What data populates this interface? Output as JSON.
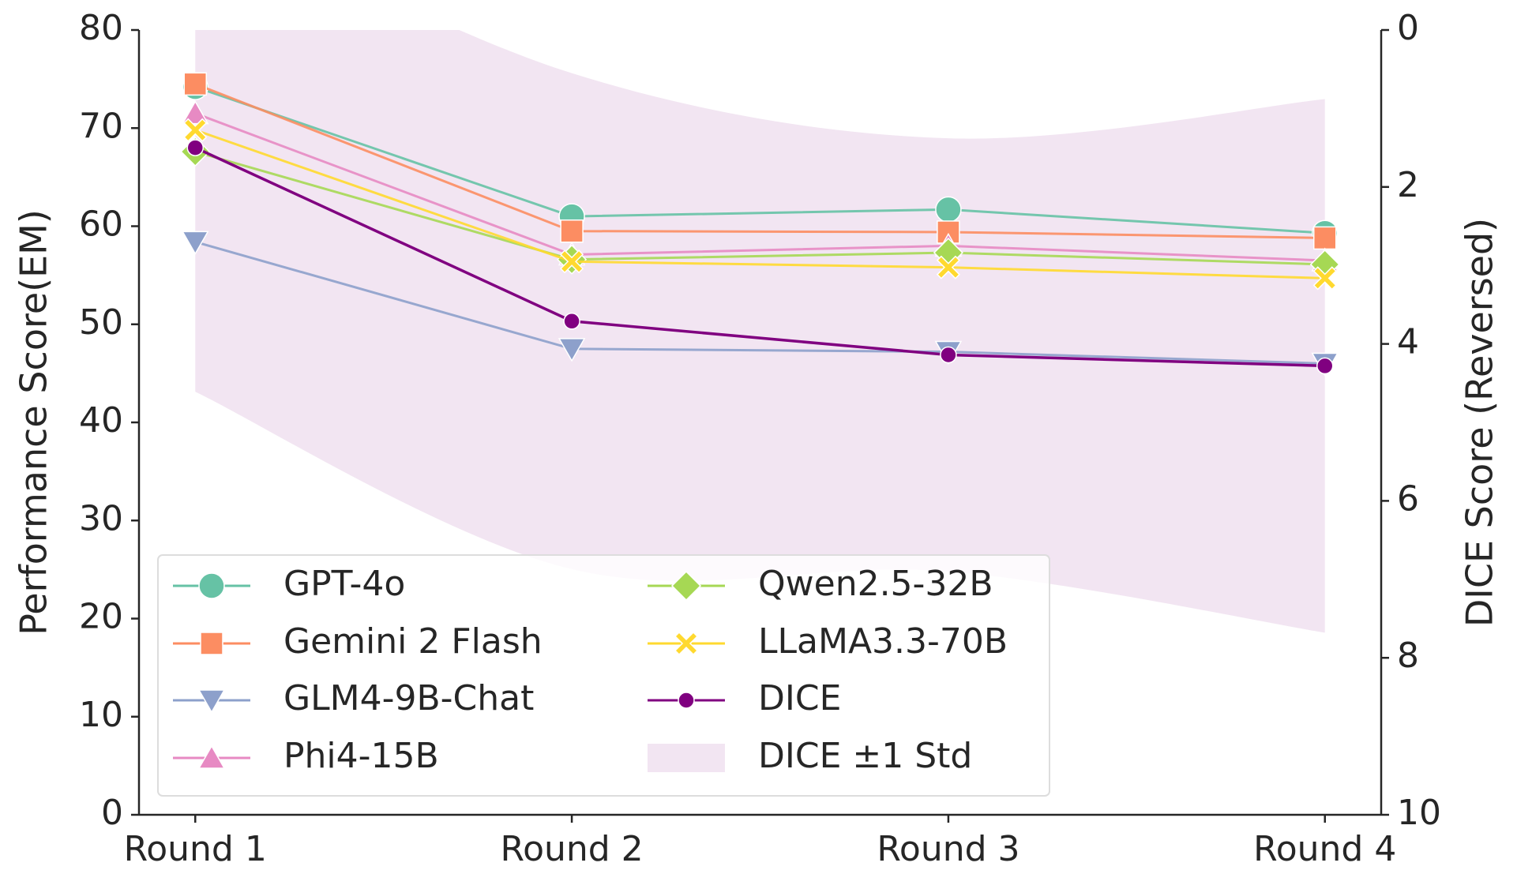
{
  "chart_data": {
    "type": "line",
    "xlabel": null,
    "ylabel": "Performance Score(EM)",
    "y2label": "DICE Score (Reversed)",
    "categories": [
      "Round 1",
      "Round 2",
      "Round 3",
      "Round 4"
    ],
    "ylim": [
      0,
      80
    ],
    "yticks": [
      0,
      10,
      20,
      30,
      40,
      50,
      60,
      70,
      80
    ],
    "y2lim": [
      0,
      10
    ],
    "y2ticks": [
      0,
      2,
      4,
      6,
      8,
      10
    ],
    "y2_inverted": true,
    "grid": false,
    "legend": "lower left",
    "series": [
      {
        "name": "GPT-4o",
        "color": "#66c2a5",
        "marker": "circle",
        "values": [
          74.2,
          61.0,
          61.7,
          59.3
        ]
      },
      {
        "name": "Gemini 2 Flash",
        "color": "#fc8d62",
        "marker": "square",
        "values": [
          74.5,
          59.5,
          59.4,
          58.8
        ]
      },
      {
        "name": "GLM4-9B-Chat",
        "color": "#8da0cb",
        "marker": "triangle-down",
        "values": [
          58.4,
          47.5,
          47.2,
          46.0
        ]
      },
      {
        "name": "Phi4-15B",
        "color": "#e78ac3",
        "marker": "triangle-up",
        "values": [
          71.5,
          57.1,
          58.0,
          56.5
        ]
      },
      {
        "name": "Qwen2.5-32B",
        "color": "#a6d854",
        "marker": "diamond",
        "values": [
          67.6,
          56.6,
          57.3,
          56.1
        ]
      },
      {
        "name": "LLaMA3.3-70B",
        "color": "#ffd92f",
        "marker": "x",
        "values": [
          69.8,
          56.4,
          55.8,
          54.7
        ]
      },
      {
        "name": "DICE",
        "color": "#800080",
        "marker": "dot",
        "axis": "y2",
        "values": [
          1.5,
          3.71,
          4.14,
          4.28
        ],
        "std": [
          3.11,
          3.16,
          2.76,
          3.4
        ],
        "band_name": "DICE ±1 Std"
      }
    ]
  }
}
